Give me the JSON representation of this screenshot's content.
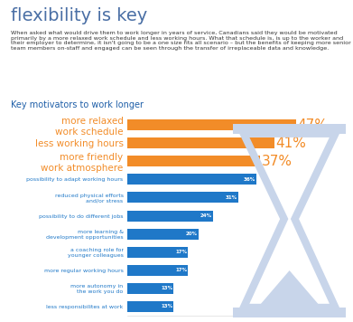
{
  "chart_data": {
    "type": "bar",
    "orientation": "horizontal",
    "title": "flexibility is key",
    "subtitle": "When asked what would drive them to work longer in years of service, Canadians said they would be motivated primarily by a more relaxed work schedule and less working hours. What that schedule is, is up to the worker and their employer to determine, it isn't going to be a one size fits all scenario – but the benefits of keeping more senior team members on-staff and engaged can be seen through the transfer of irreplaceable data and knowledge.",
    "annotations": [
      "Key motivators to work longer"
    ],
    "categories": [
      "more relaxed\nwork schedule",
      "less working hours",
      "more friendly\nwork atmosphere",
      "possibility to adapt working hours",
      "reduced physical efforts\nand/or stress",
      "possibility to do different jobs",
      "more learning &\ndevelopment opportunities",
      "a coaching role for\nyounger colleagues",
      "more regular working hours",
      "more autonomy in\nthe work you do",
      "less responsibilites at work"
    ],
    "values": [
      47,
      41,
      37,
      36,
      31,
      24,
      20,
      17,
      17,
      13,
      13
    ],
    "value_labels": [
      "47%",
      "41%",
      "37%",
      "36%",
      "31%",
      "24%",
      "20%",
      "17%",
      "17%",
      "13%",
      "13%"
    ],
    "colors": [
      "#f28c28",
      "#f28c28",
      "#f28c28",
      "#1f78c8",
      "#1f78c8",
      "#1f78c8",
      "#1f78c8",
      "#1f78c8",
      "#1f78c8",
      "#1f78c8",
      "#1f78c8"
    ],
    "data_labels": true,
    "tick_labels": "y",
    "xlim": [
      0,
      60
    ],
    "grid": false
  }
}
